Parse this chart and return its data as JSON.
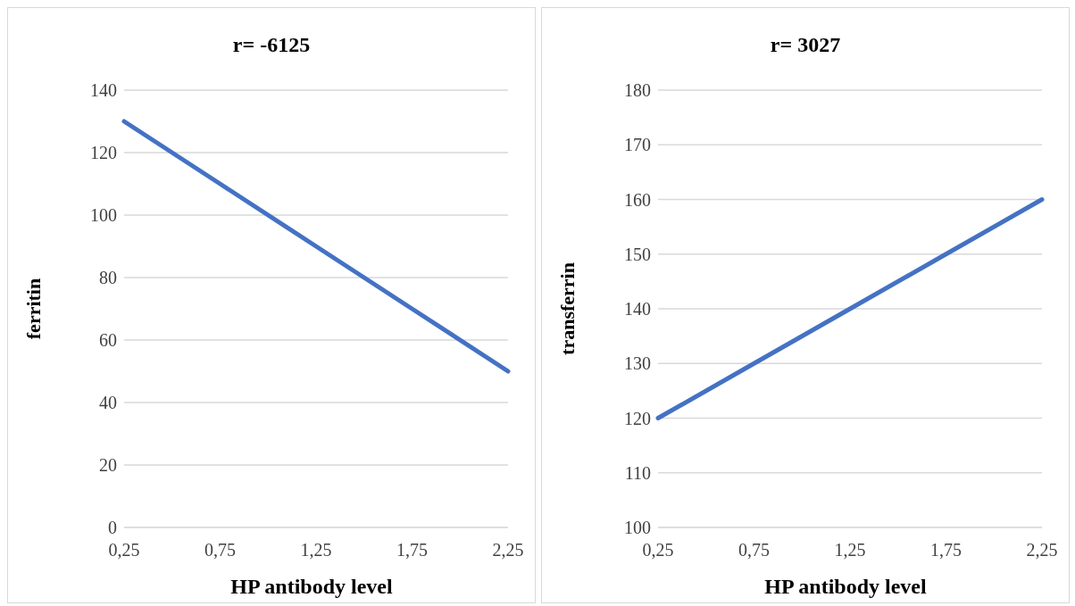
{
  "chart_data": [
    {
      "type": "line",
      "title": "r= -6125",
      "xlabel": "HP antibody level",
      "ylabel": "ferritin",
      "categories": [
        "0,25",
        "0,75",
        "1,25",
        "1,75",
        "2,25"
      ],
      "series": [
        {
          "color": "#4472c4",
          "values": [
            130,
            110,
            90,
            70,
            50
          ]
        }
      ],
      "ylim": [
        0,
        140
      ],
      "yticks": [
        0,
        20,
        40,
        60,
        80,
        100,
        120,
        140
      ],
      "grid": "y"
    },
    {
      "type": "line",
      "title": "r= 3027",
      "xlabel": "HP antibody level",
      "ylabel": "transferrin",
      "categories": [
        "0,25",
        "0,75",
        "1,25",
        "1,75",
        "2,25"
      ],
      "series": [
        {
          "color": "#4472c4",
          "values": [
            120,
            130,
            140,
            150,
            160
          ]
        }
      ],
      "ylim": [
        100,
        180
      ],
      "yticks": [
        100,
        110,
        120,
        130,
        140,
        150,
        160,
        170,
        180
      ],
      "grid": "y"
    }
  ]
}
